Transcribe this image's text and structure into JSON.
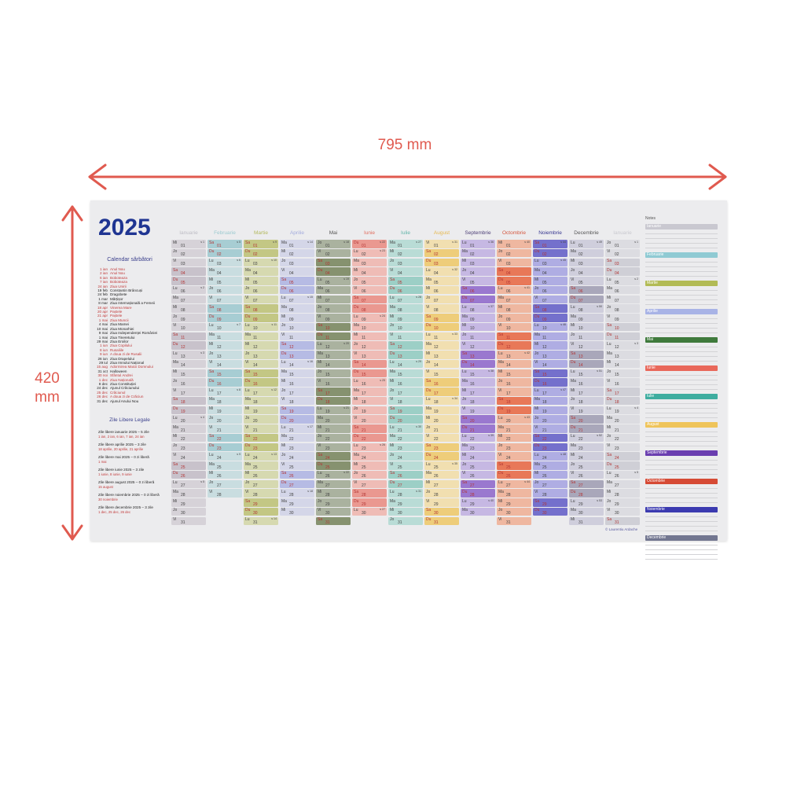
{
  "dimensions": {
    "width_label": "795 mm",
    "height_label": "420 mm",
    "arrow_color": "#e05a4f"
  },
  "poster": {
    "year": "2025",
    "holidays_title": "Calendar sărbători",
    "holidays": [
      {
        "date": "1 ian",
        "name": "Anul Nou",
        "style": "red"
      },
      {
        "date": "2 ian",
        "name": "Anul Nou",
        "style": "red"
      },
      {
        "date": "6 ian",
        "name": "Boboteaza",
        "style": "red"
      },
      {
        "date": "7 ian",
        "name": "Boboteaza",
        "style": "red"
      },
      {
        "date": "24 ian",
        "name": "Ziua Unirii",
        "style": "red"
      },
      {
        "date": "19 feb",
        "name": "Constantin Brâncuși",
        "style": "dark"
      },
      {
        "date": "24 feb",
        "name": "Dragobete",
        "style": "dark"
      },
      {
        "date": "1 mar",
        "name": "Mărțișor",
        "style": "dark"
      },
      {
        "date": "8 mar",
        "name": "Ziua Internațională a Femeii",
        "style": "dark"
      },
      {
        "date": "18 apr",
        "name": "Vinerea Mare",
        "style": "red"
      },
      {
        "date": "20 apr",
        "name": "Paștele",
        "style": "red"
      },
      {
        "date": "21 apr",
        "name": "Paștele",
        "style": "red"
      },
      {
        "date": "1 mai",
        "name": "Ziua Muncii",
        "style": "red"
      },
      {
        "date": "4 mai",
        "name": "Ziua Mamei",
        "style": "dark"
      },
      {
        "date": "10 mai",
        "name": "Ziua Monarhiei",
        "style": "dark"
      },
      {
        "date": "9 mai",
        "name": "Ziua Independenței României",
        "style": "dark"
      },
      {
        "date": "1 mai",
        "name": "Ziua Tineretului",
        "style": "dark"
      },
      {
        "date": "29 mai",
        "name": "Ziua Eroilor",
        "style": "dark"
      },
      {
        "date": "1 iun",
        "name": "Ziua Copilului",
        "style": "red"
      },
      {
        "date": "8 iun",
        "name": "Rusaliile",
        "style": "red"
      },
      {
        "date": "9 iun",
        "name": "A doua zi de Rusalii",
        "style": "red"
      },
      {
        "date": "26 iun",
        "name": "Ziua Drapelului",
        "style": "dark"
      },
      {
        "date": "29 iul",
        "name": "Ziua Imnului Național",
        "style": "dark"
      },
      {
        "date": "15 aug",
        "name": "Adormirea Maicii Domnului",
        "style": "red"
      },
      {
        "date": "31 oct",
        "name": "Halloween",
        "style": "dark"
      },
      {
        "date": "30 noi",
        "name": "Sfântul Andrei",
        "style": "red"
      },
      {
        "date": "1 dec",
        "name": "Ziua Națională",
        "style": "red"
      },
      {
        "date": "8 dec",
        "name": "Ziua Constituției",
        "style": "dark"
      },
      {
        "date": "24 dec",
        "name": "Ajunul Crăciunului",
        "style": "dark"
      },
      {
        "date": "25 dec",
        "name": "Crăciunul",
        "style": "red"
      },
      {
        "date": "26 dec",
        "name": "A doua zi de Crăciun",
        "style": "red"
      },
      {
        "date": "31 dec",
        "name": "Ajunul Anului Nou",
        "style": "dark"
      }
    ],
    "free_days_title": "Zile Libere Legale",
    "free_days": [
      {
        "title": "Zile libere ianuarie 2025 – 5 zile",
        "days": "1 ian, 2 ian, 6 ian, 7 ian, 24 ian"
      },
      {
        "title": "Zile libere aprilie 2025 – 3 zile",
        "days": "18 aprilie, 20 aprilie, 21 aprilie"
      },
      {
        "title": "Zile libere mai 2025 – 0 zi liberă",
        "days": "1 mai"
      },
      {
        "title": "Zile libere iunie 2025 – 3 zile",
        "days": "1 iunie, 8 iunie, 9 iunie"
      },
      {
        "title": "Zile libere august 2025 – 0 zi liberă",
        "days": "15 august"
      },
      {
        "title": "Zile libere noiembrie 2025 – 0 zi liberă",
        "days": "30 noiembrie"
      },
      {
        "title": "Zile libere decembrie 2025 – 3 zile",
        "days": "1 dec, 25 dec, 26 dec"
      }
    ],
    "weekdays": [
      "Lu",
      "Ma",
      "Mi",
      "Jo",
      "Vi",
      "Sa",
      "Du"
    ],
    "months": [
      {
        "name": "Ianuarie",
        "days": 31,
        "first_weekday": 2,
        "first_week": 1,
        "color": "#d6d2d8",
        "weekend": "#c8c2cb",
        "header": "#bdbcc4"
      },
      {
        "name": "Februarie",
        "days": 28,
        "first_weekday": 5,
        "first_week": 5,
        "color": "#c9dde0",
        "weekend": "#a7cdd3",
        "header": "#9ccad0"
      },
      {
        "name": "Martie",
        "days": 31,
        "first_weekday": 5,
        "first_week": 9,
        "color": "#d6d9b0",
        "weekend": "#c3c784",
        "header": "#b3b95e"
      },
      {
        "name": "Aprilie",
        "days": 30,
        "first_weekday": 1,
        "first_week": 14,
        "color": "#d4d6e8",
        "weekend": "#b6bbe4",
        "header": "#a3abdd"
      },
      {
        "name": "Mai",
        "days": 31,
        "first_weekday": 3,
        "first_week": 18,
        "color": "#aab29f",
        "weekend": "#86926f",
        "header": "#555555"
      },
      {
        "name": "Iunie",
        "days": 30,
        "first_weekday": 6,
        "first_week": 22,
        "color": "#efbcb6",
        "weekend": "#ea9890",
        "header": "#e06e5f"
      },
      {
        "name": "Iulie",
        "days": 31,
        "first_weekday": 1,
        "first_week": 27,
        "color": "#b9dcd6",
        "weekend": "#9ccfc6",
        "header": "#5fb3a8"
      },
      {
        "name": "August",
        "days": 31,
        "first_weekday": 4,
        "first_week": 31,
        "color": "#f1dfb0",
        "weekend": "#eecd7a",
        "header": "#e6b84f"
      },
      {
        "name": "Septembrie",
        "days": 30,
        "first_weekday": 0,
        "first_week": 36,
        "color": "#c6b8e3",
        "weekend": "#9a78cf",
        "header": "#4e4178"
      },
      {
        "name": "Octombrie",
        "days": 31,
        "first_weekday": 2,
        "first_week": 40,
        "color": "#efb7a0",
        "weekend": "#e87858",
        "header": "#d4573f"
      },
      {
        "name": "Noiembrie",
        "days": 30,
        "first_weekday": 5,
        "first_week": 44,
        "color": "#afade3",
        "weekend": "#7470cc",
        "header": "#35358f"
      },
      {
        "name": "Decembrie",
        "days": 31,
        "first_weekday": 0,
        "first_week": 49,
        "color": "#cfcedc",
        "weekend": "#a9a7ba",
        "header": "#555555"
      },
      {
        "name": "Ianuarie",
        "days": 31,
        "first_weekday": 3,
        "first_week": 1,
        "color": "#dcdce1",
        "weekend": "#cfcfd6",
        "header": "#c9c9cf"
      }
    ],
    "notes": {
      "title": "Notes",
      "months": [
        {
          "name": "Ianuarie",
          "color": "#c9c8d0"
        },
        {
          "name": "Februarie",
          "color": "#8fcad3"
        },
        {
          "name": "Martie",
          "color": "#b2bb55"
        },
        {
          "name": "Aprilie",
          "color": "#a8b3e6"
        },
        {
          "name": "Mai",
          "color": "#3f7a3c"
        },
        {
          "name": "Iunie",
          "color": "#e9685b"
        },
        {
          "name": "Iulie",
          "color": "#3eada0"
        },
        {
          "name": "August",
          "color": "#efc45a"
        },
        {
          "name": "Septembrie",
          "color": "#6a3eb0"
        },
        {
          "name": "Octombrie",
          "color": "#d64a35"
        },
        {
          "name": "Noiembrie",
          "color": "#3b3ab0"
        },
        {
          "name": "Decembrie",
          "color": "#727690"
        }
      ]
    },
    "credit": "© Laurentiu Ardache"
  }
}
